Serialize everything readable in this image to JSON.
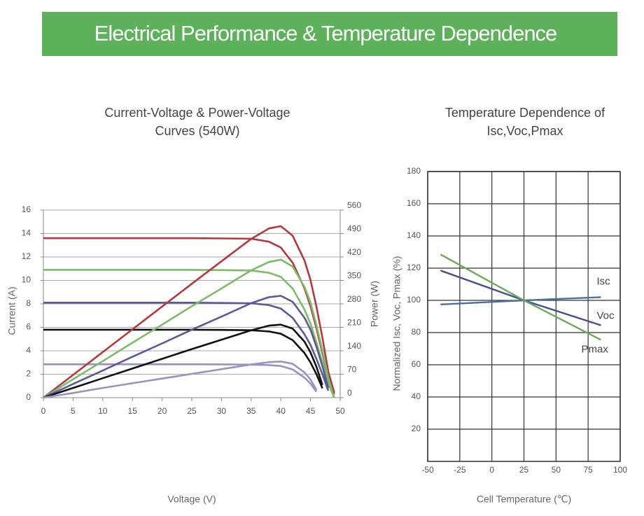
{
  "header": {
    "title": "Electrical Performance & Temperature Dependence"
  },
  "chart_data": [
    {
      "type": "line",
      "title": [
        "Current-Voltage & Power-Voltage",
        "Curves (540W)"
      ],
      "x_label": "Voltage (V)",
      "y_label": "Current (A)",
      "y2_label": "Power (W)",
      "xlim": [
        0,
        50
      ],
      "xticks": [
        0,
        5,
        10,
        15,
        20,
        25,
        30,
        35,
        40,
        45,
        50
      ],
      "ylim": [
        0,
        16
      ],
      "yticks": [
        0,
        2,
        4,
        6,
        8,
        10,
        12,
        14,
        16
      ],
      "y2lim": [
        0,
        560
      ],
      "y2ticks": [
        0,
        70,
        140,
        210,
        280,
        350,
        420,
        490,
        560
      ],
      "grid": "y",
      "x": [
        0,
        5,
        10,
        15,
        20,
        25,
        30,
        35,
        38,
        40,
        42,
        44,
        45,
        46,
        47,
        48,
        49
      ],
      "series": [
        {
          "color": "#b03a3e",
          "values": [
            13.6,
            13.6,
            13.6,
            13.6,
            13.6,
            13.6,
            13.58,
            13.55,
            13.3,
            12.8,
            11.5,
            9.3,
            7.8,
            5.9,
            3.8,
            1.6,
            0.3
          ]
        },
        {
          "color": "#7dbb6a",
          "values": [
            10.9,
            10.9,
            10.9,
            10.9,
            10.9,
            10.9,
            10.88,
            10.85,
            10.65,
            10.3,
            9.3,
            7.5,
            6.3,
            4.7,
            3.0,
            1.2,
            0
          ]
        },
        {
          "color": "#5a5a96",
          "values": [
            8.1,
            8.1,
            8.1,
            8.1,
            8.1,
            8.1,
            8.08,
            8.05,
            7.9,
            7.6,
            6.8,
            5.4,
            4.5,
            3.3,
            2.0,
            0.6,
            null
          ]
        },
        {
          "color": "#111111",
          "values": [
            5.8,
            5.8,
            5.8,
            5.8,
            5.8,
            5.8,
            5.78,
            5.75,
            5.65,
            5.45,
            4.9,
            3.8,
            3.0,
            2.0,
            0.8,
            null,
            null
          ]
        },
        {
          "color": "#9b92c0",
          "values": [
            2.85,
            2.85,
            2.85,
            2.85,
            2.85,
            2.85,
            2.84,
            2.82,
            2.78,
            2.7,
            2.4,
            1.7,
            1.2,
            0.5,
            null,
            null,
            null
          ]
        },
        {
          "color": "#b03a3e",
          "axis": "y2",
          "values": [
            0,
            68,
            136,
            204,
            272,
            340,
            407,
            474,
            505,
            512,
            483,
            409,
            351,
            271,
            179,
            77,
            15
          ]
        },
        {
          "color": "#7dbb6a",
          "axis": "y2",
          "values": [
            0,
            55,
            109,
            164,
            218,
            273,
            326,
            380,
            405,
            412,
            391,
            330,
            284,
            216,
            141,
            58,
            0
          ]
        },
        {
          "color": "#5a5a96",
          "axis": "y2",
          "values": [
            0,
            41,
            81,
            122,
            162,
            203,
            242,
            282,
            300,
            304,
            286,
            238,
            203,
            152,
            94,
            29,
            null
          ]
        },
        {
          "color": "#111111",
          "axis": "y2",
          "values": [
            0,
            29,
            58,
            87,
            116,
            145,
            173,
            201,
            215,
            218,
            206,
            167,
            135,
            92,
            38,
            null,
            null
          ]
        },
        {
          "color": "#9b92c0",
          "axis": "y2",
          "values": [
            0,
            14,
            29,
            43,
            57,
            71,
            85,
            99,
            106,
            108,
            101,
            75,
            54,
            23,
            null,
            null,
            null
          ]
        }
      ]
    },
    {
      "type": "line",
      "title": [
        "Temperature Dependence of",
        "Isc,Voc,Pmax"
      ],
      "x_label": "Cell Temperature (℃)",
      "y_label": "Normalized Isc, Voc, Pmax (%)",
      "xlim": [
        -50,
        100
      ],
      "xticks": [
        -50,
        -25,
        0,
        25,
        50,
        75,
        100
      ],
      "ylim": [
        0,
        180
      ],
      "yticks": [
        20,
        40,
        60,
        80,
        100,
        120,
        140,
        160,
        180
      ],
      "grid": "both",
      "x": [
        -40,
        25,
        85
      ],
      "series": [
        {
          "name": "Isc",
          "color": "#4a6fa5",
          "values": [
            97.5,
            100,
            102
          ]
        },
        {
          "name": "Voc",
          "color": "#4b4e8a",
          "values": [
            118.5,
            100,
            84.5
          ]
        },
        {
          "name": "Pmax",
          "color": "#6aa85a",
          "values": [
            128.5,
            100,
            75.5
          ]
        }
      ]
    }
  ]
}
